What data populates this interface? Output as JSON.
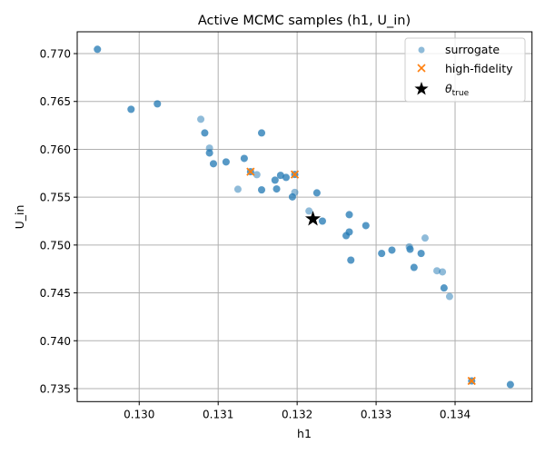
{
  "chart_data": {
    "type": "scatter",
    "title": "Active MCMC samples (h1, U_in)",
    "xlabel": "h1",
    "ylabel": "U_in",
    "xlim": [
      0.129215,
      0.134974
    ],
    "ylim": [
      0.73364,
      0.77228
    ],
    "grid": true,
    "legend_placement": "top-right",
    "xticks": [
      0.13,
      0.131,
      0.132,
      0.133,
      0.134
    ],
    "xtick_labels": [
      "0.130",
      "0.131",
      "0.132",
      "0.133",
      "0.134"
    ],
    "yticks": [
      0.735,
      0.74,
      0.745,
      0.75,
      0.755,
      0.76,
      0.765,
      0.77
    ],
    "ytick_labels": [
      "0.735",
      "0.740",
      "0.745",
      "0.750",
      "0.755",
      "0.760",
      "0.765",
      "0.770"
    ],
    "series": [
      {
        "name": "surrogate",
        "marker": "circle",
        "color": "#1f77b4",
        "alpha": 0.5,
        "points": [
          [
            0.129471,
            0.77045,
            2
          ],
          [
            0.129897,
            0.76418,
            2
          ],
          [
            0.13023,
            0.76475,
            2
          ],
          [
            0.13078,
            0.76314,
            1
          ],
          [
            0.13083,
            0.76171,
            2
          ],
          [
            0.13155,
            0.76171,
            2
          ],
          [
            0.13089,
            0.76013,
            1
          ],
          [
            0.13089,
            0.75962,
            2
          ],
          [
            0.13094,
            0.75849,
            2
          ],
          [
            0.1311,
            0.75868,
            2
          ],
          [
            0.13133,
            0.75905,
            2
          ],
          [
            0.13141,
            0.75766,
            2
          ],
          [
            0.13149,
            0.75735,
            1
          ],
          [
            0.13125,
            0.75583,
            1
          ],
          [
            0.13155,
            0.75576,
            2
          ],
          [
            0.13172,
            0.75678,
            2
          ],
          [
            0.13174,
            0.75586,
            2
          ],
          [
            0.13179,
            0.75728,
            2
          ],
          [
            0.13186,
            0.75706,
            2
          ],
          [
            0.13197,
            0.75737,
            2
          ],
          [
            0.13194,
            0.75503,
            2
          ],
          [
            0.13197,
            0.7555,
            1
          ],
          [
            0.13225,
            0.75545,
            2
          ],
          [
            0.13215,
            0.75355,
            1
          ],
          [
            0.13232,
            0.7525,
            2
          ],
          [
            0.13266,
            0.75317,
            2
          ],
          [
            0.13287,
            0.75203,
            2
          ],
          [
            0.13266,
            0.75136,
            2
          ],
          [
            0.13262,
            0.75098,
            2
          ],
          [
            0.13268,
            0.74842,
            2
          ],
          [
            0.13307,
            0.74912,
            2
          ],
          [
            0.1332,
            0.74947,
            2
          ],
          [
            0.13342,
            0.74981,
            1
          ],
          [
            0.13343,
            0.74956,
            2
          ],
          [
            0.13362,
            0.75073,
            1
          ],
          [
            0.13357,
            0.74912,
            2
          ],
          [
            0.13348,
            0.74766,
            2
          ],
          [
            0.13377,
            0.74731,
            1
          ],
          [
            0.13384,
            0.74719,
            1
          ],
          [
            0.13386,
            0.74551,
            2
          ],
          [
            0.13393,
            0.74462,
            1
          ],
          [
            0.13421,
            0.7358,
            2
          ],
          [
            0.1347,
            0.73542,
            2
          ]
        ]
      },
      {
        "name": "high-fidelity",
        "marker": "x",
        "color": "#ff7f0e",
        "points": [
          [
            0.13141,
            0.75766
          ],
          [
            0.13197,
            0.75737
          ],
          [
            0.13421,
            0.7358
          ]
        ]
      },
      {
        "name": "θ_true",
        "legend_label": {
          "base": "θ",
          "sub": "true"
        },
        "marker": "star",
        "color": "#000000",
        "points": [
          [
            0.1322,
            0.75272
          ]
        ]
      }
    ]
  }
}
